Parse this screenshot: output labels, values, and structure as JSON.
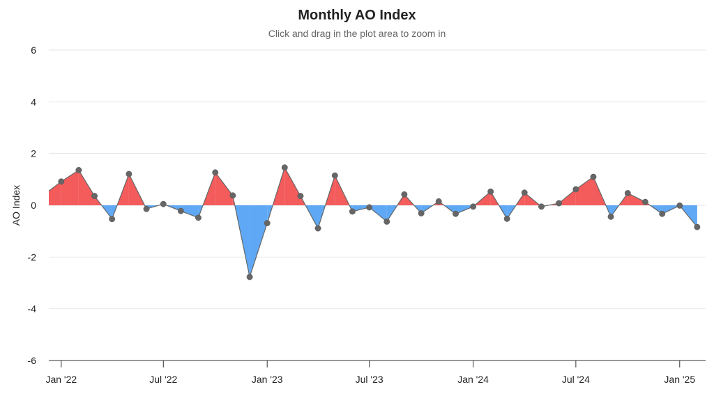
{
  "chart_data": {
    "type": "area",
    "title": "Monthly AO Index",
    "subtitle": "Click and drag in the plot area to zoom in",
    "ylabel": "AO Index",
    "xlabel": "",
    "ylim": [
      -6,
      6
    ],
    "y_ticks": [
      -6,
      -4,
      -2,
      0,
      2,
      4,
      6
    ],
    "x_range": [
      "2021-12-10",
      "2025-02-16"
    ],
    "x_ticks": [
      {
        "date": "2022-01-01",
        "label": "Jan '22"
      },
      {
        "date": "2022-07-01",
        "label": "Jul '22"
      },
      {
        "date": "2023-01-01",
        "label": "Jan '23"
      },
      {
        "date": "2023-07-01",
        "label": "Jul '23"
      },
      {
        "date": "2024-01-01",
        "label": "Jan '24"
      },
      {
        "date": "2024-07-01",
        "label": "Jul '24"
      },
      {
        "date": "2025-01-01",
        "label": "Jan '25"
      }
    ],
    "positive_color": "#f45b5b",
    "negative_color": "#5fa8f5",
    "line_color": "#666666",
    "grid": true,
    "legend": false,
    "series": [
      {
        "x": [
          "2021-12-01",
          "2022-01-01",
          "2022-02-01",
          "2022-03-01",
          "2022-04-01",
          "2022-05-01",
          "2022-06-01",
          "2022-07-01",
          "2022-08-01",
          "2022-09-01",
          "2022-10-01",
          "2022-11-01",
          "2022-12-01",
          "2023-01-01",
          "2023-02-01",
          "2023-03-01",
          "2023-04-01",
          "2023-05-01",
          "2023-06-01",
          "2023-07-01",
          "2023-08-01",
          "2023-09-01",
          "2023-10-01",
          "2023-11-01",
          "2023-12-01",
          "2024-01-01",
          "2024-02-01",
          "2024-03-01",
          "2024-04-01",
          "2024-05-01",
          "2024-06-01",
          "2024-07-01",
          "2024-08-01",
          "2024-09-01",
          "2024-10-01",
          "2024-11-01",
          "2024-12-01",
          "2025-01-01",
          "2025-02-01"
        ],
        "values": [
          0.4,
          0.92,
          1.36,
          0.36,
          -0.53,
          1.21,
          -0.14,
          0.05,
          -0.22,
          -0.48,
          1.27,
          0.38,
          -2.77,
          -0.69,
          1.46,
          0.36,
          -0.89,
          1.15,
          -0.24,
          -0.08,
          -0.63,
          0.42,
          -0.31,
          0.15,
          -0.33,
          -0.05,
          0.53,
          -0.52,
          0.49,
          -0.05,
          0.08,
          0.62,
          1.1,
          -0.44,
          0.47,
          0.13,
          -0.33,
          -0.01,
          -0.84
        ]
      }
    ]
  }
}
